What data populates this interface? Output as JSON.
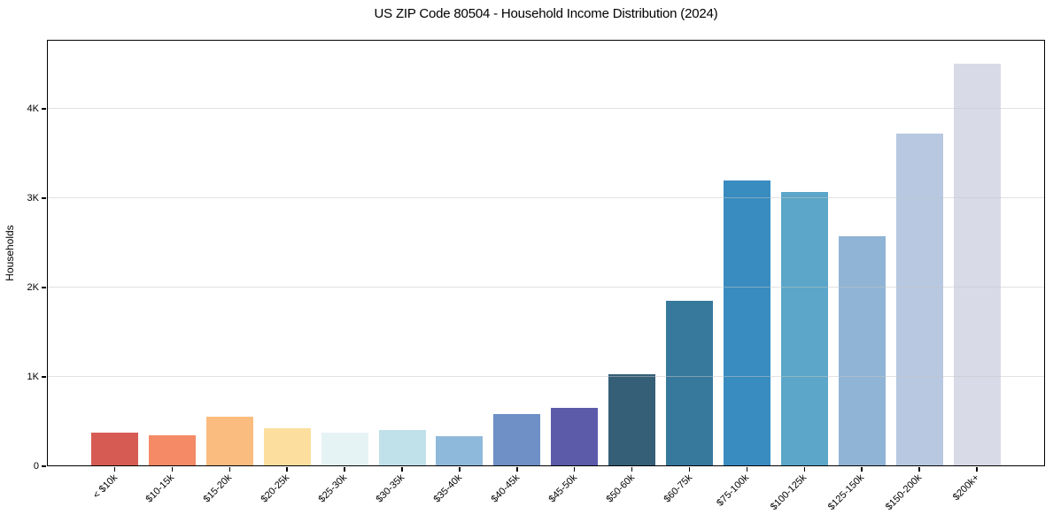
{
  "title": "US ZIP Code 80504 - Household Income Distribution (2024)",
  "chart_data": {
    "type": "bar",
    "title": "US ZIP Code 80504 - Household Income Distribution (2024)",
    "xlabel": "",
    "ylabel": "Households",
    "categories": [
      "< $10k",
      "$10-15k",
      "$15-20k",
      "$20-25k",
      "$25-30k",
      "$30-35k",
      "$35-40k",
      "$40-45k",
      "$45-50k",
      "$50-60k",
      "$60-75k",
      "$75-100k",
      "$100-125k",
      "$125-150k",
      "$150-200k",
      "$200k+"
    ],
    "values": [
      378,
      345,
      550,
      430,
      372,
      402,
      333,
      588,
      657,
      1030,
      1852,
      3195,
      3065,
      2573,
      3724,
      4508
    ],
    "bar_colors": [
      "#d65c53",
      "#f58a67",
      "#fbbc7f",
      "#fcdf9e",
      "#e6f3f5",
      "#c0e0ea",
      "#8fb9da",
      "#6e90c6",
      "#5c5baa",
      "#355f77",
      "#37799d",
      "#388cc0",
      "#5ba6c9",
      "#90b4d5",
      "#b7c8e0",
      "#d8dae8"
    ],
    "y_ticks": [
      {
        "value": 0,
        "label": "0"
      },
      {
        "value": 1000,
        "label": "1K"
      },
      {
        "value": 2000,
        "label": "2K"
      },
      {
        "value": 3000,
        "label": "3K"
      },
      {
        "value": 4000,
        "label": "4K"
      }
    ],
    "ylim": [
      0,
      4772
    ],
    "grid": "horizontal-gridlines-on",
    "legend": "none",
    "background_color": "#ffffff",
    "axis_color": "#000000",
    "gridline_color": "#e9e9e9"
  }
}
